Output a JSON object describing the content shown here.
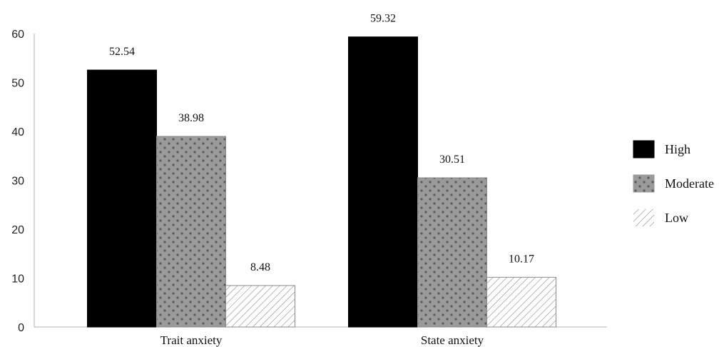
{
  "chart_data": {
    "type": "bar",
    "title": "",
    "xlabel": "",
    "ylabel": "",
    "categories": [
      "Trait anxiety",
      "State anxiety"
    ],
    "ylim": [
      0,
      60
    ],
    "yticks": [
      0,
      10,
      20,
      30,
      40,
      50,
      60
    ],
    "grid": false,
    "legend_position": "right",
    "series": [
      {
        "name": "High",
        "values": [
          52.54,
          59.32
        ],
        "labels": [
          "52.54",
          "59.32"
        ],
        "pattern": "solid",
        "color": "#000000"
      },
      {
        "name": "Moderate",
        "values": [
          38.98,
          30.51
        ],
        "labels": [
          "38.98",
          "30.51"
        ],
        "pattern": "dots",
        "color": "#9a9a9a"
      },
      {
        "name": "Low",
        "values": [
          8.48,
          10.17
        ],
        "labels": [
          "8.48",
          "10.17"
        ],
        "pattern": "hatch",
        "color": "#ffffff"
      }
    ]
  }
}
